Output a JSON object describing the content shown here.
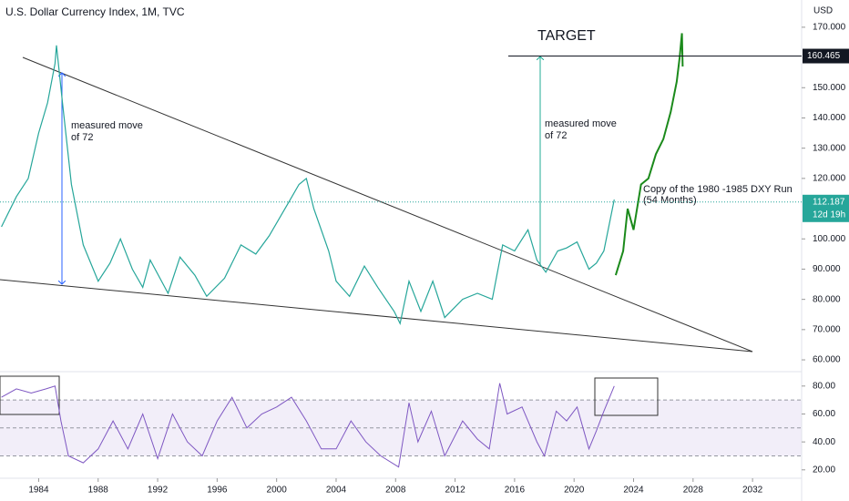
{
  "chart_data": {
    "type": "line",
    "title": "U.S. Dollar Currency Index, 1M, TVC",
    "currency": "USD",
    "xlim": [
      1981.4,
      2035.3
    ],
    "xticks": [
      1984,
      1988,
      1992,
      1996,
      2000,
      2004,
      2008,
      2012,
      2016,
      2020,
      2024,
      2028,
      2032
    ],
    "ylim": [
      57,
      179
    ],
    "yticks": [
      {
        "value": 170,
        "label": "170.000"
      },
      {
        "value": 150,
        "label": "150.000"
      },
      {
        "value": 140,
        "label": "140.000"
      },
      {
        "value": 130,
        "label": "130.000"
      },
      {
        "value": 120,
        "label": "120.000"
      },
      {
        "value": 100,
        "label": "100.000"
      },
      {
        "value": 90,
        "label": "90.000"
      },
      {
        "value": 80,
        "label": "80.000"
      },
      {
        "value": 70,
        "label": "70.000"
      },
      {
        "value": 60,
        "label": "60.000"
      }
    ],
    "series": [
      {
        "color": "#26a69a",
        "x": [
          1981.5,
          1982.5,
          1983.3,
          1984.0,
          1984.6,
          1985.1,
          1985.2,
          1985.6,
          1986.2,
          1987.0,
          1988.0,
          1988.8,
          1989.5,
          1990.3,
          1991.0,
          1991.5,
          1992.7,
          1993.5,
          1994.5,
          1995.3,
          1996.5,
          1997.6,
          1998.6,
          1999.5,
          2000.8,
          2001.5,
          2002.0,
          2002.5,
          2003.5,
          2004.0,
          2004.9,
          2005.9,
          2006.8,
          2007.9,
          2008.3,
          2008.9,
          2009.7,
          2010.5,
          2011.3,
          2012.5,
          2013.5,
          2014.5,
          2015.2,
          2016.0,
          2016.9,
          2017.5,
          2018.1,
          2018.9,
          2019.5,
          2020.2,
          2021.0,
          2021.5,
          2022.0,
          2022.7
        ],
        "values": [
          104,
          114,
          120,
          135,
          145,
          158,
          164,
          145,
          118,
          98,
          86,
          92,
          100,
          90,
          84,
          93,
          82,
          94,
          88,
          81,
          87,
          98,
          95,
          101,
          112,
          118,
          120,
          110,
          96,
          86,
          81,
          91,
          84,
          76,
          72,
          86,
          76,
          86,
          74,
          80,
          82,
          80,
          98,
          96,
          103,
          93,
          89,
          96,
          97,
          99,
          90,
          92,
          96,
          113
        ]
      },
      {
        "color": "#1b8a1b",
        "x": [
          2022.8,
          2023.3,
          2023.6,
          2024.0,
          2024.5,
          2025.0,
          2025.5,
          2026.0,
          2026.5,
          2026.9,
          2027.1,
          2027.25,
          2027.3
        ],
        "values": [
          88,
          96,
          110,
          103,
          118,
          120,
          128,
          133,
          142,
          152,
          160,
          168,
          157
        ]
      }
    ],
    "last_price": {
      "value": 112.187,
      "label": "112.187",
      "countdown": "12d 19h"
    },
    "target_price": {
      "value": 160.465,
      "label": "160.465"
    },
    "annotations": {
      "target": "TARGET",
      "measured_move_1": [
        "measured move",
        "of 72"
      ],
      "measured_move_2": [
        "measured move",
        "of 72"
      ],
      "copy_note": [
        "Copy of the 1980 -1985 DXY Run",
        "(54 Months)"
      ]
    },
    "rsi": {
      "color": "#7e57c2",
      "ylim": [
        14,
        89
      ],
      "yticks": [
        {
          "value": 80,
          "label": "80.00"
        },
        {
          "value": 60,
          "label": "60.00"
        },
        {
          "value": 40,
          "label": "40.00"
        },
        {
          "value": 20,
          "label": "20.00"
        }
      ],
      "band": [
        30,
        70
      ],
      "mid": 50,
      "x": [
        1981.5,
        1982.5,
        1983.5,
        1984.5,
        1985.1,
        1985.5,
        1986.0,
        1987.0,
        1988.0,
        1989.0,
        1990.0,
        1991.0,
        1992.0,
        1993.0,
        1994.0,
        1995.0,
        1996.0,
        1997.0,
        1998.0,
        1999.0,
        2000.0,
        2001.0,
        2002.0,
        2003.0,
        2004.0,
        2005.0,
        2006.0,
        2007.0,
        2008.2,
        2008.9,
        2009.5,
        2010.4,
        2011.3,
        2012.5,
        2013.5,
        2014.3,
        2015.0,
        2015.5,
        2016.5,
        2017.5,
        2018.0,
        2018.8,
        2019.5,
        2020.2,
        2021.0,
        2021.5,
        2022.0,
        2022.7
      ],
      "values": [
        72,
        78,
        75,
        78,
        80,
        55,
        30,
        25,
        35,
        55,
        35,
        60,
        28,
        60,
        40,
        30,
        55,
        72,
        50,
        60,
        65,
        72,
        55,
        35,
        35,
        55,
        40,
        30,
        22,
        68,
        40,
        62,
        30,
        55,
        42,
        35,
        82,
        60,
        65,
        40,
        30,
        62,
        55,
        65,
        35,
        48,
        62,
        80
      ]
    }
  }
}
